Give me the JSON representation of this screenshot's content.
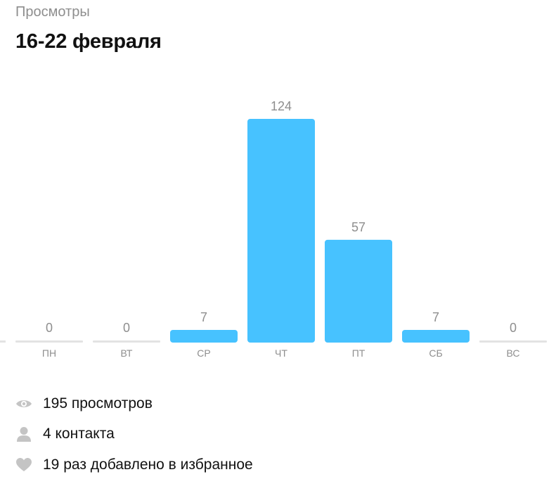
{
  "header": {
    "subtitle": "Просмотры",
    "title": "16-22 февраля"
  },
  "chart_data": {
    "type": "bar",
    "categories": [
      "ПН",
      "ВТ",
      "СР",
      "ЧТ",
      "ПТ",
      "СБ",
      "ВС"
    ],
    "values": [
      0,
      0,
      7,
      124,
      57,
      7,
      0
    ],
    "ylim": [
      0,
      124
    ],
    "grid": false,
    "colors": {
      "bar": "#47c2ff",
      "zero": "#e3e3e3",
      "value_label": "#8e8e8e",
      "category_label": "#8e8e8e"
    }
  },
  "stats": [
    {
      "icon": "eye-icon",
      "text": "195 просмотров"
    },
    {
      "icon": "person-icon",
      "text": "4 контакта"
    },
    {
      "icon": "heart-icon",
      "text": "19 раз добавлено в избранное"
    }
  ]
}
